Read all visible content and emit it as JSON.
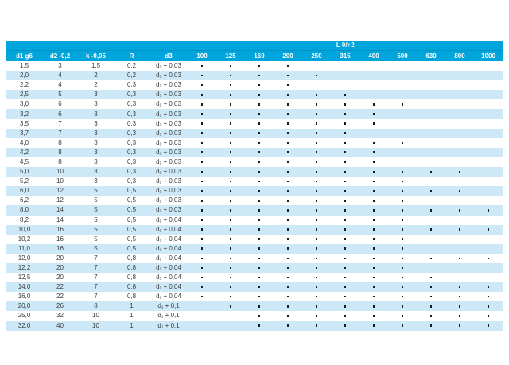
{
  "colors": {
    "header_background": "#00a5dc",
    "alt_row_background": "#cde9f7",
    "header_text": "#ffffff",
    "body_text": "#3d3d3d",
    "dot": "#1b1b1b"
  },
  "table": {
    "group_header": "L 0/+2",
    "columns": [
      "d1 g6",
      "d2 -0,2",
      "k -0,05",
      "R",
      "d3"
    ],
    "length_columns": [
      "100",
      "125",
      "160",
      "200",
      "250",
      "315",
      "400",
      "500",
      "630",
      "800",
      "1000"
    ],
    "rows": [
      {
        "d1": "1,5",
        "d2": "3",
        "k": "1,5",
        "r": "0,2",
        "d3": "d₁ + 0,03",
        "lengths": [
          "100",
          "125",
          "160",
          "200"
        ]
      },
      {
        "d1": "2,0",
        "d2": "4",
        "k": "2",
        "r": "0,2",
        "d3": "d₁ + 0,03",
        "lengths": [
          "100",
          "125",
          "160",
          "200",
          "250"
        ]
      },
      {
        "d1": "2,2",
        "d2": "4",
        "k": "2",
        "r": "0,3",
        "d3": "d₁ + 0,03",
        "lengths": [
          "100",
          "125",
          "160",
          "200"
        ]
      },
      {
        "d1": "2,5",
        "d2": "5",
        "k": "3",
        "r": "0,3",
        "d3": "d₁ + 0,03",
        "lengths": [
          "100",
          "125",
          "160",
          "200",
          "250",
          "315"
        ]
      },
      {
        "d1": "3,0",
        "d2": "6",
        "k": "3",
        "r": "0,3",
        "d3": "d₁ + 0,03",
        "lengths": [
          "100",
          "125",
          "160",
          "200",
          "250",
          "315",
          "400",
          "500"
        ]
      },
      {
        "d1": "3,2",
        "d2": "6",
        "k": "3",
        "r": "0,3",
        "d3": "d₁ + 0,03",
        "lengths": [
          "100",
          "125",
          "160",
          "200",
          "250",
          "315",
          "400"
        ]
      },
      {
        "d1": "3,5",
        "d2": "7",
        "k": "3",
        "r": "0,3",
        "d3": "d₁ + 0,03",
        "lengths": [
          "100",
          "125",
          "160",
          "200",
          "250",
          "315",
          "400"
        ]
      },
      {
        "d1": "3,7",
        "d2": "7",
        "k": "3",
        "r": "0,3",
        "d3": "d₁ + 0,03",
        "lengths": [
          "100",
          "125",
          "160",
          "200",
          "250",
          "315"
        ]
      },
      {
        "d1": "4,0",
        "d2": "8",
        "k": "3",
        "r": "0,3",
        "d3": "d₁ + 0,03",
        "lengths": [
          "100",
          "125",
          "160",
          "200",
          "250",
          "315",
          "400",
          "500"
        ]
      },
      {
        "d1": "4,2",
        "d2": "8",
        "k": "3",
        "r": "0,3",
        "d3": "d₁ + 0,03",
        "lengths": [
          "100",
          "125",
          "160",
          "200",
          "250",
          "315",
          "400"
        ]
      },
      {
        "d1": "4,5",
        "d2": "8",
        "k": "3",
        "r": "0,3",
        "d3": "d₁ + 0,03",
        "lengths": [
          "100",
          "125",
          "160",
          "200",
          "250",
          "315",
          "400"
        ]
      },
      {
        "d1": "5,0",
        "d2": "10",
        "k": "3",
        "r": "0,3",
        "d3": "d₁ + 0,03",
        "lengths": [
          "100",
          "125",
          "160",
          "200",
          "250",
          "315",
          "400",
          "500",
          "630",
          "800"
        ]
      },
      {
        "d1": "5,2",
        "d2": "10",
        "k": "3",
        "r": "0,3",
        "d3": "d₁ + 0,03",
        "lengths": [
          "100",
          "125",
          "160",
          "200",
          "250",
          "315",
          "400",
          "500"
        ]
      },
      {
        "d1": "6,0",
        "d2": "12",
        "k": "5",
        "r": "0,5",
        "d3": "d₁ + 0,03",
        "lengths": [
          "100",
          "125",
          "160",
          "200",
          "250",
          "315",
          "400",
          "500",
          "630",
          "800"
        ]
      },
      {
        "d1": "6,2",
        "d2": "12",
        "k": "5",
        "r": "0,5",
        "d3": "d₁ + 0,03",
        "lengths": [
          "100",
          "125",
          "160",
          "200",
          "250",
          "315",
          "400",
          "500"
        ]
      },
      {
        "d1": "8,0",
        "d2": "14",
        "k": "5",
        "r": "0,5",
        "d3": "d₁ + 0,03",
        "lengths": [
          "100",
          "125",
          "160",
          "200",
          "250",
          "315",
          "400",
          "500",
          "630",
          "800",
          "1000"
        ]
      },
      {
        "d1": "8,2",
        "d2": "14",
        "k": "5",
        "r": "0,5",
        "d3": "d₁ + 0,04",
        "lengths": [
          "100",
          "125",
          "160",
          "200",
          "250",
          "315",
          "400",
          "500"
        ]
      },
      {
        "d1": "10,0",
        "d2": "16",
        "k": "5",
        "r": "0,5",
        "d3": "d₁ + 0,04",
        "lengths": [
          "100",
          "125",
          "160",
          "200",
          "250",
          "315",
          "400",
          "500",
          "630",
          "800",
          "1000"
        ]
      },
      {
        "d1": "10,2",
        "d2": "16",
        "k": "5",
        "r": "0,5",
        "d3": "d₁ + 0,04",
        "lengths": [
          "100",
          "125",
          "160",
          "200",
          "250",
          "315",
          "400",
          "500"
        ]
      },
      {
        "d1": "11,0",
        "d2": "16",
        "k": "5",
        "r": "0,5",
        "d3": "d₁ + 0,04",
        "lengths": [
          "100",
          "125",
          "160",
          "200",
          "250",
          "315",
          "400",
          "500"
        ]
      },
      {
        "d1": "12,0",
        "d2": "20",
        "k": "7",
        "r": "0,8",
        "d3": "d₁ + 0,04",
        "lengths": [
          "100",
          "125",
          "160",
          "200",
          "250",
          "315",
          "400",
          "500",
          "630",
          "800",
          "1000"
        ]
      },
      {
        "d1": "12,2",
        "d2": "20",
        "k": "7",
        "r": "0,8",
        "d3": "d₁ + 0,04",
        "lengths": [
          "100",
          "125",
          "160",
          "200",
          "250",
          "315",
          "400",
          "500"
        ]
      },
      {
        "d1": "12,5",
        "d2": "20",
        "k": "7",
        "r": "0,8",
        "d3": "d₁ + 0,04",
        "lengths": [
          "100",
          "125",
          "160",
          "200",
          "250",
          "315",
          "400",
          "500",
          "630"
        ]
      },
      {
        "d1": "14,0",
        "d2": "22",
        "k": "7",
        "r": "0,8",
        "d3": "d₁ + 0,04",
        "lengths": [
          "100",
          "125",
          "160",
          "200",
          "250",
          "315",
          "400",
          "500",
          "630",
          "800",
          "1000"
        ]
      },
      {
        "d1": "16,0",
        "d2": "22",
        "k": "7",
        "r": "0,8",
        "d3": "d₁ + 0,04",
        "lengths": [
          "100",
          "125",
          "160",
          "200",
          "250",
          "315",
          "400",
          "500",
          "630",
          "800",
          "1000"
        ]
      },
      {
        "d1": "20,0",
        "d2": "26",
        "k": "8",
        "r": "1",
        "d3": "d₁ + 0,1",
        "lengths": [
          "125",
          "160",
          "200",
          "250",
          "315",
          "400",
          "500",
          "630",
          "800",
          "1000"
        ]
      },
      {
        "d1": "25,0",
        "d2": "32",
        "k": "10",
        "r": "1",
        "d3": "d₁ + 0,1",
        "lengths": [
          "160",
          "200",
          "250",
          "315",
          "400",
          "500",
          "630",
          "800",
          "1000"
        ]
      },
      {
        "d1": "32,0",
        "d2": "40",
        "k": "10",
        "r": "1",
        "d3": "d₁ + 0,1",
        "lengths": [
          "160",
          "200",
          "250",
          "315",
          "400",
          "500",
          "630",
          "800",
          "1000"
        ]
      }
    ]
  }
}
